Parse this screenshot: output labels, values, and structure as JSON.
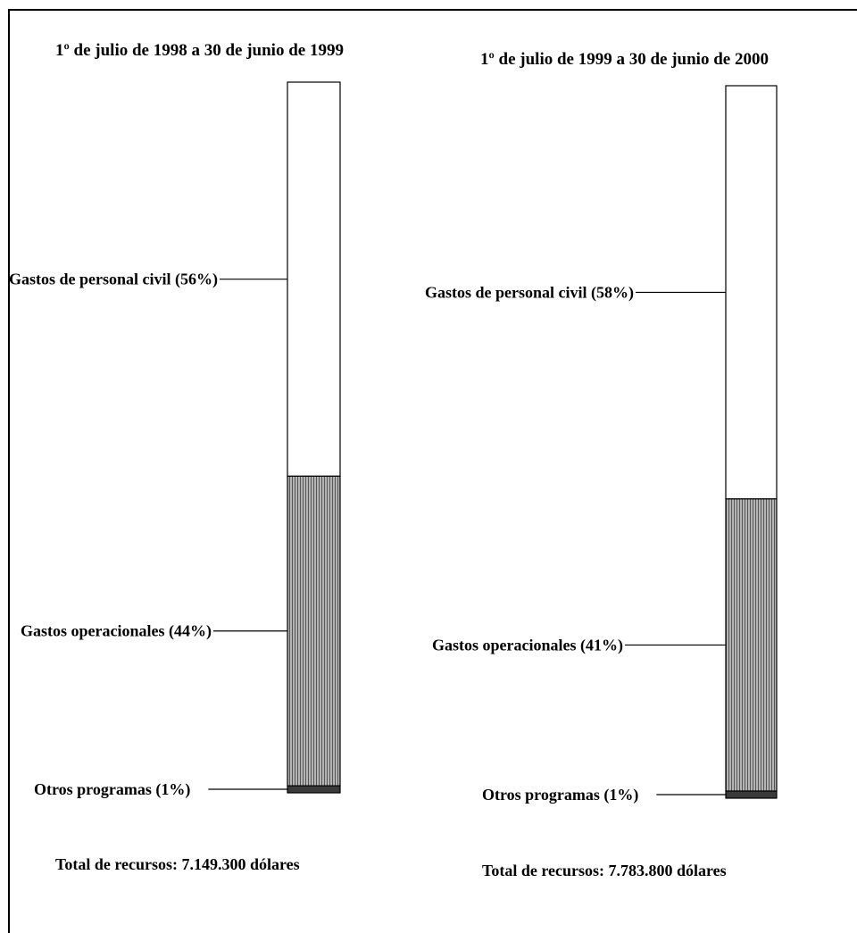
{
  "chart_data": [
    {
      "type": "bar",
      "stacked": true,
      "title": "1º de julio de 1998 a 30 de junio de 1999",
      "series": [
        {
          "name": "Gastos de personal civil (56%)",
          "value": 56,
          "color": "#ffffff"
        },
        {
          "name": "Gastos operacionales (44%)",
          "value": 44,
          "color": "#a8a8a8"
        },
        {
          "name": "Otros programas (1%)",
          "value": 1,
          "color": "#3a3a3a"
        }
      ],
      "total": "Total de recursos: 7.149.300 dólares"
    },
    {
      "type": "bar",
      "stacked": true,
      "title": "1º de julio de 1999 a 30 de junio de  2000",
      "series": [
        {
          "name": "Gastos de personal civil (58%)",
          "value": 58,
          "color": "#ffffff"
        },
        {
          "name": "Gastos operacionales (41%)",
          "value": 41,
          "color": "#a8a8a8"
        },
        {
          "name": "Otros programas (1%)",
          "value": 1,
          "color": "#3a3a3a"
        }
      ],
      "total": "Total de recursos: 7.783.800 dólares"
    }
  ]
}
